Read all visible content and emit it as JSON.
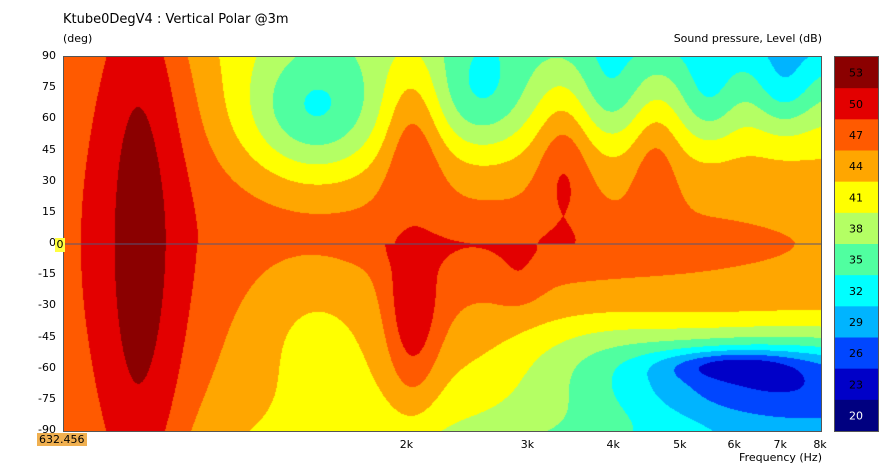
{
  "chart_data": {
    "type": "heatmap",
    "title": "Ktube0DegV4 : Vertical Polar @3m",
    "ylabel": "(deg)",
    "xlabel": "Frequency  (Hz)",
    "colorbar_label": "Sound pressure, Level  (dB)",
    "cursor_readout": "632.456",
    "zero_marker": "0",
    "x_scale": "log",
    "xlim": [
      632.456,
      8000
    ],
    "ylim": [
      -90,
      90
    ],
    "y_ticks": [
      "90",
      "75",
      "60",
      "45",
      "30",
      "15",
      "0",
      "-15",
      "-30",
      "-45",
      "-60",
      "-75",
      "-90"
    ],
    "x_ticks": [
      {
        "value": 2000,
        "label": "2k"
      },
      {
        "value": 3000,
        "label": "3k"
      },
      {
        "value": 4000,
        "label": "4k"
      },
      {
        "value": 5000,
        "label": "5k"
      },
      {
        "value": 6000,
        "label": "6k"
      },
      {
        "value": 7000,
        "label": "7k"
      },
      {
        "value": 8000,
        "label": "8k"
      }
    ],
    "colorbar": [
      {
        "label": "53",
        "color": "#8b0000"
      },
      {
        "label": "50",
        "color": "#e30000"
      },
      {
        "label": "47",
        "color": "#ff5a00"
      },
      {
        "label": "44",
        "color": "#ffa600"
      },
      {
        "label": "41",
        "color": "#ffff00"
      },
      {
        "label": "38",
        "color": "#b4ff64"
      },
      {
        "label": "35",
        "color": "#50ffa0"
      },
      {
        "label": "32",
        "color": "#00ffff"
      },
      {
        "label": "29",
        "color": "#00b4ff"
      },
      {
        "label": "26",
        "color": "#0046ff"
      },
      {
        "label": "23",
        "color": "#0000c8"
      },
      {
        "label": "20",
        "color": "#000080"
      }
    ],
    "below_range_color": "#000000",
    "grid": false,
    "legend_placement": "right"
  }
}
